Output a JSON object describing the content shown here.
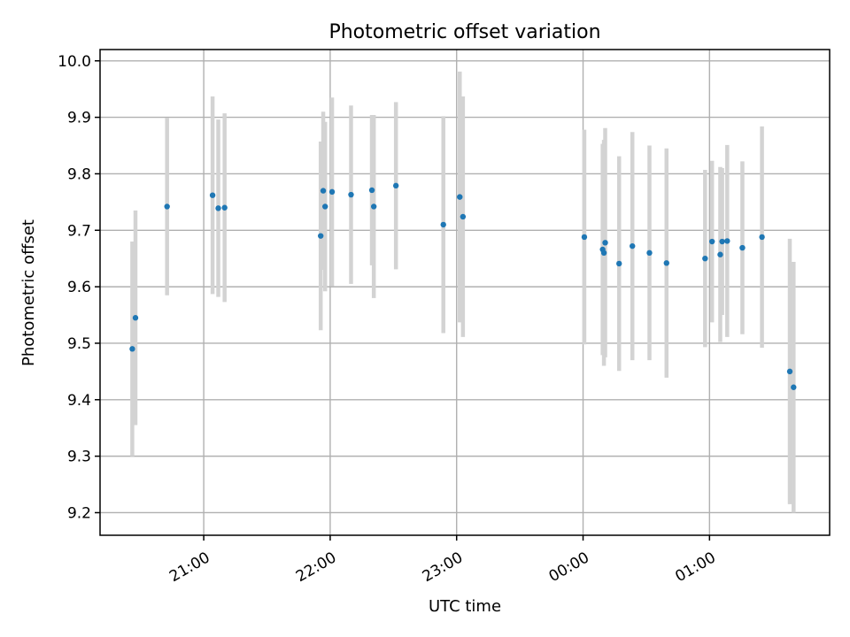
{
  "chart_data": {
    "type": "scatter",
    "title": "Photometric offset variation",
    "xlabel": "UTC time",
    "ylabel": "Photometric offset",
    "x_unit": "hours since 00:00 UTC (negative = previous evening)",
    "xlim": [
      -3.82,
      1.95
    ],
    "ylim": [
      9.16,
      10.02
    ],
    "xticks": [
      -3,
      -2,
      -1,
      0,
      1
    ],
    "xtick_labels": [
      "21:00",
      "22:00",
      "23:00",
      "00:00",
      "01:00"
    ],
    "yticks": [
      9.2,
      9.3,
      9.4,
      9.5,
      9.6,
      9.7,
      9.8,
      9.9,
      10.0
    ],
    "ytick_labels": [
      "9.2",
      "9.3",
      "9.4",
      "9.5",
      "9.6",
      "9.7",
      "9.8",
      "9.9",
      "10.0"
    ],
    "grid": true,
    "point_color": "#1f77b4",
    "errorbar_color": "#d3d3d3",
    "points": [
      {
        "x": -3.565,
        "y": 9.49,
        "err": 0.19
      },
      {
        "x": -3.54,
        "y": 9.545,
        "err": 0.19
      },
      {
        "x": -3.29,
        "y": 9.742,
        "err": 0.157
      },
      {
        "x": -2.93,
        "y": 9.762,
        "err": 0.175
      },
      {
        "x": -2.885,
        "y": 9.739,
        "err": 0.157
      },
      {
        "x": -2.835,
        "y": 9.74,
        "err": 0.167
      },
      {
        "x": -2.075,
        "y": 9.69,
        "err": 0.167
      },
      {
        "x": -2.055,
        "y": 9.77,
        "err": 0.14
      },
      {
        "x": -2.04,
        "y": 9.742,
        "err": 0.15
      },
      {
        "x": -1.985,
        "y": 9.768,
        "err": 0.167
      },
      {
        "x": -1.835,
        "y": 9.763,
        "err": 0.158
      },
      {
        "x": -1.67,
        "y": 9.771,
        "err": 0.133
      },
      {
        "x": -1.655,
        "y": 9.742,
        "err": 0.162
      },
      {
        "x": -1.48,
        "y": 9.779,
        "err": 0.148
      },
      {
        "x": -1.105,
        "y": 9.71,
        "err": 0.192
      },
      {
        "x": -0.975,
        "y": 9.759,
        "err": 0.222
      },
      {
        "x": -0.95,
        "y": 9.724,
        "err": 0.213
      },
      {
        "x": 0.01,
        "y": 9.688,
        "err": 0.19
      },
      {
        "x": 0.155,
        "y": 9.666,
        "err": 0.187
      },
      {
        "x": 0.165,
        "y": 9.66,
        "err": 0.2
      },
      {
        "x": 0.175,
        "y": 9.678,
        "err": 0.203
      },
      {
        "x": 0.285,
        "y": 9.641,
        "err": 0.19
      },
      {
        "x": 0.39,
        "y": 9.672,
        "err": 0.202
      },
      {
        "x": 0.525,
        "y": 9.66,
        "err": 0.19
      },
      {
        "x": 0.66,
        "y": 9.642,
        "err": 0.203
      },
      {
        "x": 0.965,
        "y": 9.65,
        "err": 0.157
      },
      {
        "x": 1.02,
        "y": 9.68,
        "err": 0.143
      },
      {
        "x": 1.085,
        "y": 9.657,
        "err": 0.155
      },
      {
        "x": 1.1,
        "y": 9.68,
        "err": 0.13
      },
      {
        "x": 1.14,
        "y": 9.681,
        "err": 0.17
      },
      {
        "x": 1.26,
        "y": 9.669,
        "err": 0.153
      },
      {
        "x": 1.415,
        "y": 9.688,
        "err": 0.196
      },
      {
        "x": 1.635,
        "y": 9.45,
        "err": 0.235
      },
      {
        "x": 1.665,
        "y": 9.422,
        "err": 0.222
      }
    ]
  }
}
